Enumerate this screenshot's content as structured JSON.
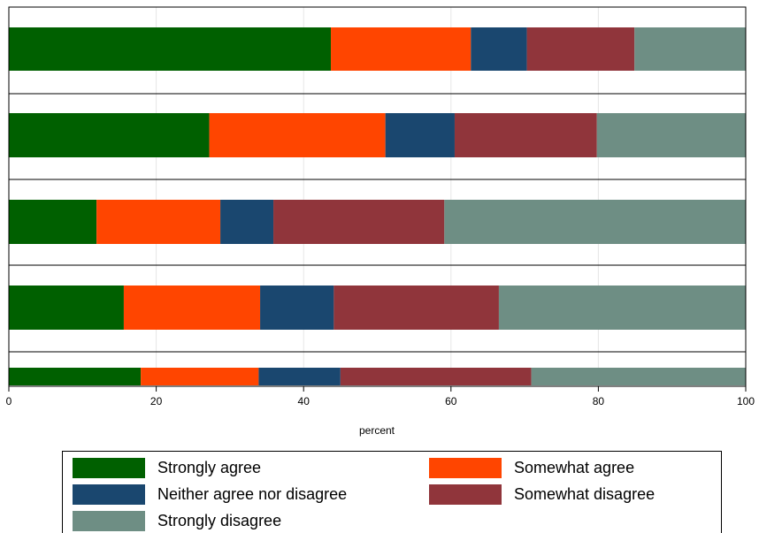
{
  "chart_data": {
    "type": "bar",
    "orientation": "horizontal",
    "stacked": true,
    "title": "",
    "xlabel": "percent",
    "ylabel": "",
    "xlim": [
      0,
      100
    ],
    "xticks": [
      0,
      20,
      40,
      60,
      80,
      100
    ],
    "grid": true,
    "legend_position": "bottom",
    "series": [
      {
        "name": "Strongly agree",
        "color": "#006000",
        "values": [
          43.7,
          27.2,
          11.9,
          15.6,
          17.9
        ]
      },
      {
        "name": "Somewhat agree",
        "color": "#FF4500",
        "values": [
          19.0,
          23.9,
          16.8,
          18.5,
          16.0
        ]
      },
      {
        "name": "Neither agree nor disagree",
        "color": "#1A476F",
        "values": [
          7.6,
          9.4,
          7.2,
          10.0,
          11.1
        ]
      },
      {
        "name": "Somewhat disagree",
        "color": "#90353B",
        "values": [
          14.6,
          19.3,
          23.2,
          22.4,
          25.9
        ]
      },
      {
        "name": "Strongly disagree",
        "color": "#6E8E84",
        "values": [
          15.1,
          20.2,
          40.9,
          33.5,
          29.1
        ]
      }
    ]
  }
}
